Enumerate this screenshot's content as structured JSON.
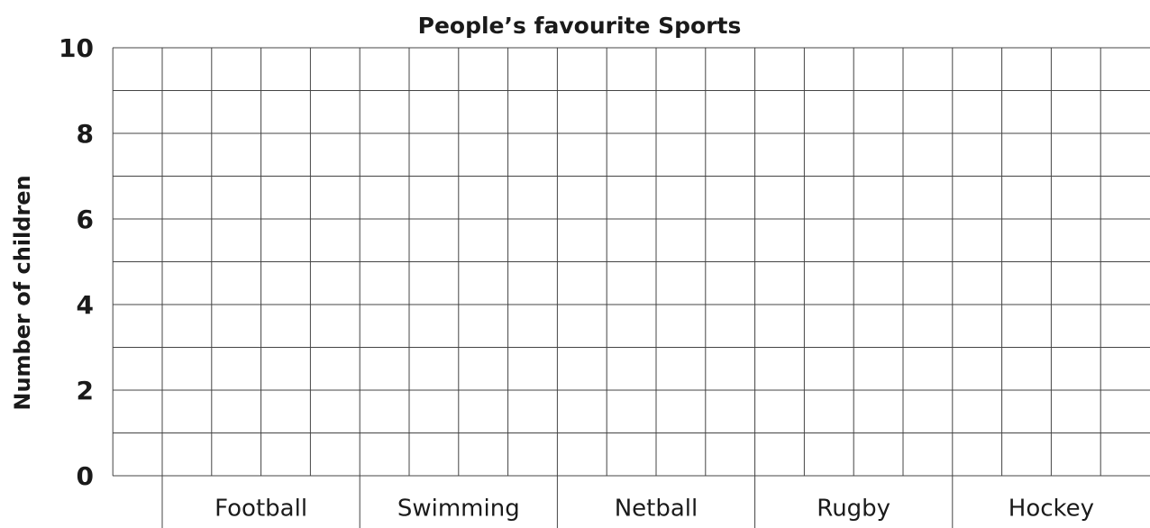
{
  "chart_data": {
    "type": "bar",
    "title": "People’s favourite Sports",
    "y_label": "Number of children",
    "categories": [
      "Football",
      "Swimming",
      "Netball",
      "Rugby",
      "Hockey"
    ],
    "ylim": [
      0,
      10
    ],
    "yticks": [
      0,
      2,
      4,
      6,
      8,
      10
    ],
    "minor_yticks": [
      1,
      3,
      5,
      7,
      9
    ],
    "grid": true,
    "subdivisions_per_category": 4
  }
}
